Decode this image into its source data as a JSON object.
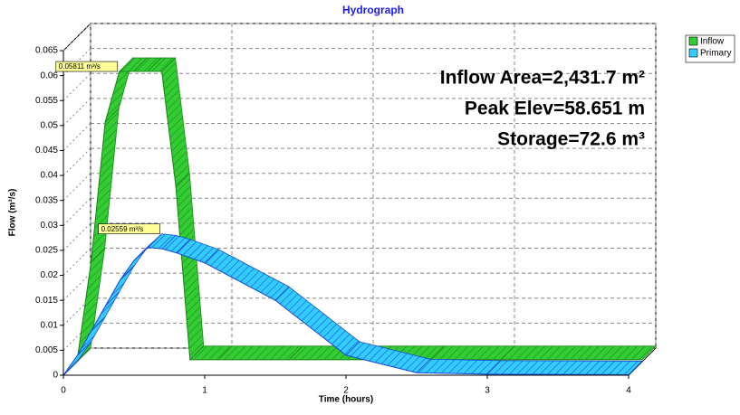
{
  "chart_data": {
    "type": "line",
    "title": "Hydrograph",
    "x_label": "Time  (hours)",
    "y_label": "Flow  (m³/s)",
    "x": [
      0,
      0.1,
      0.2,
      0.3,
      0.4,
      0.5,
      0.6,
      0.7,
      0.8,
      1,
      1.5,
      2,
      2.5,
      3,
      4
    ],
    "series": [
      {
        "name": "Inflow",
        "color": "#33cc33",
        "edge": "#1c8a1c",
        "values": [
          0,
          0.02,
          0.048,
          0.05811,
          0.05811,
          0.05811,
          0.05811,
          0.035,
          0.0004,
          0.0004,
          0.0004,
          0.0004,
          0.0004,
          0.0004,
          0.0004
        ]
      },
      {
        "name": "Primary",
        "color": "#33ccff",
        "edge": "#1a4fd6",
        "values": [
          0,
          0.004,
          0.009,
          0.014,
          0.019,
          0.023,
          0.02559,
          0.0253,
          0.0245,
          0.0225,
          0.015,
          0.004,
          0.0005,
          0.0002,
          0.0001
        ]
      }
    ],
    "annotations": [
      {
        "text": "0.05811 m³/s",
        "x": 0.3,
        "y": 0.05811
      },
      {
        "text": "0.02559 m³/s",
        "x": 0.6,
        "y": 0.02559
      }
    ],
    "info_lines": [
      "Inflow Area=2,431.7 m²",
      "Peak Elev=58.651 m",
      "Storage=72.6 m³"
    ],
    "xlim": [
      0,
      4
    ],
    "xticks": [
      0,
      1,
      2,
      3,
      4
    ],
    "ylim": [
      0,
      0.065
    ],
    "yticks": [
      0,
      0.005,
      0.01,
      0.015,
      0.02,
      0.025,
      0.03,
      0.035,
      0.04,
      0.045,
      0.05,
      0.055,
      0.06,
      0.065
    ],
    "grid": true,
    "legend": "upper right"
  }
}
